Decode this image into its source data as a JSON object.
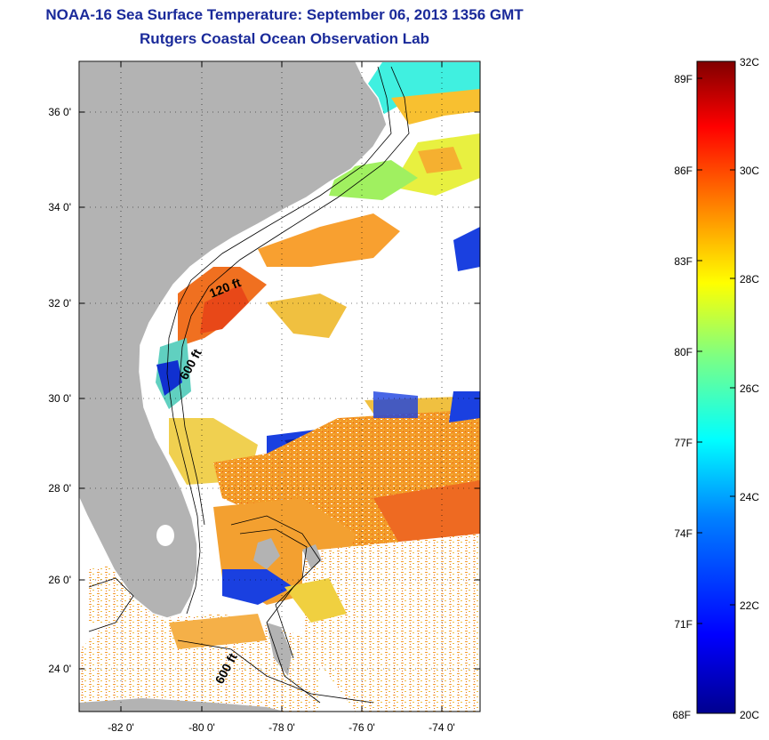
{
  "header": {
    "title": "NOAA-16 Sea Surface Temperature:  September 06, 2013 1356 GMT",
    "subtitle": "Rutgers Coastal Ocean Observation Lab"
  },
  "map": {
    "lat_labels": [
      "36 0'",
      "34 0'",
      "32 0'",
      "30 0'",
      "28 0'",
      "26 0'",
      "24 0'"
    ],
    "lon_labels": [
      "-82 0'",
      "-80 0'",
      "-78 0'",
      "-76 0'",
      "-74 0'"
    ],
    "contour_labels": [
      "120 ft",
      "600 ft",
      "600 ft"
    ],
    "land_color": "#b3b3b3",
    "no_data_color": "#ffffff"
  },
  "colorbar": {
    "fahrenheit_labels": [
      "89F",
      "86F",
      "83F",
      "80F",
      "77F",
      "74F",
      "71F",
      "68F"
    ],
    "celsius_labels": [
      "32C",
      "30C",
      "28C",
      "26C",
      "24C",
      "22C",
      "20C"
    ],
    "colors": [
      "#00008f",
      "#0000ff",
      "#0080ff",
      "#00ffff",
      "#80ff80",
      "#ffff00",
      "#ff8000",
      "#ff0000",
      "#800000"
    ]
  }
}
